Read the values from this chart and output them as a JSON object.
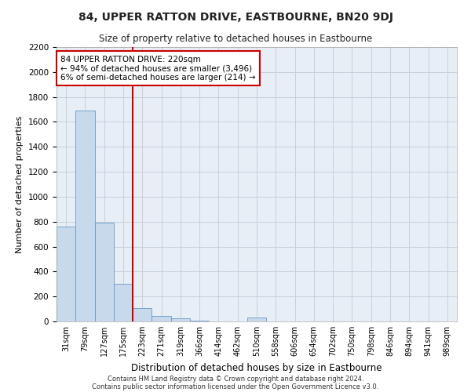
{
  "title1": "84, UPPER RATTON DRIVE, EASTBOURNE, BN20 9DJ",
  "title2": "Size of property relative to detached houses in Eastbourne",
  "xlabel": "Distribution of detached houses by size in Eastbourne",
  "ylabel": "Number of detached properties",
  "categories": [
    "31sqm",
    "79sqm",
    "127sqm",
    "175sqm",
    "223sqm",
    "271sqm",
    "319sqm",
    "366sqm",
    "414sqm",
    "462sqm",
    "510sqm",
    "558sqm",
    "606sqm",
    "654sqm",
    "702sqm",
    "750sqm",
    "798sqm",
    "846sqm",
    "894sqm",
    "941sqm",
    "989sqm"
  ],
  "bar_heights": [
    760,
    1690,
    790,
    300,
    110,
    45,
    25,
    5,
    0,
    0,
    30,
    0,
    0,
    0,
    0,
    0,
    0,
    0,
    0,
    0,
    0
  ],
  "bar_color": "#c9d9ec",
  "bar_edge_color": "#6699cc",
  "grid_color": "#c8d0dc",
  "vline_x": 3.5,
  "vline_color": "#cc0000",
  "annotation_text": "84 UPPER RATTON DRIVE: 220sqm\n← 94% of detached houses are smaller (3,496)\n6% of semi-detached houses are larger (214) →",
  "annotation_box_color": "#cc0000",
  "annotation_text_color": "#000000",
  "footer1": "Contains HM Land Registry data © Crown copyright and database right 2024.",
  "footer2": "Contains public sector information licensed under the Open Government Licence v3.0.",
  "ylim": [
    0,
    2200
  ],
  "yticks": [
    0,
    200,
    400,
    600,
    800,
    1000,
    1200,
    1400,
    1600,
    1800,
    2000,
    2200
  ],
  "bg_color": "#ffffff",
  "plot_bg_color": "#e8eef5"
}
